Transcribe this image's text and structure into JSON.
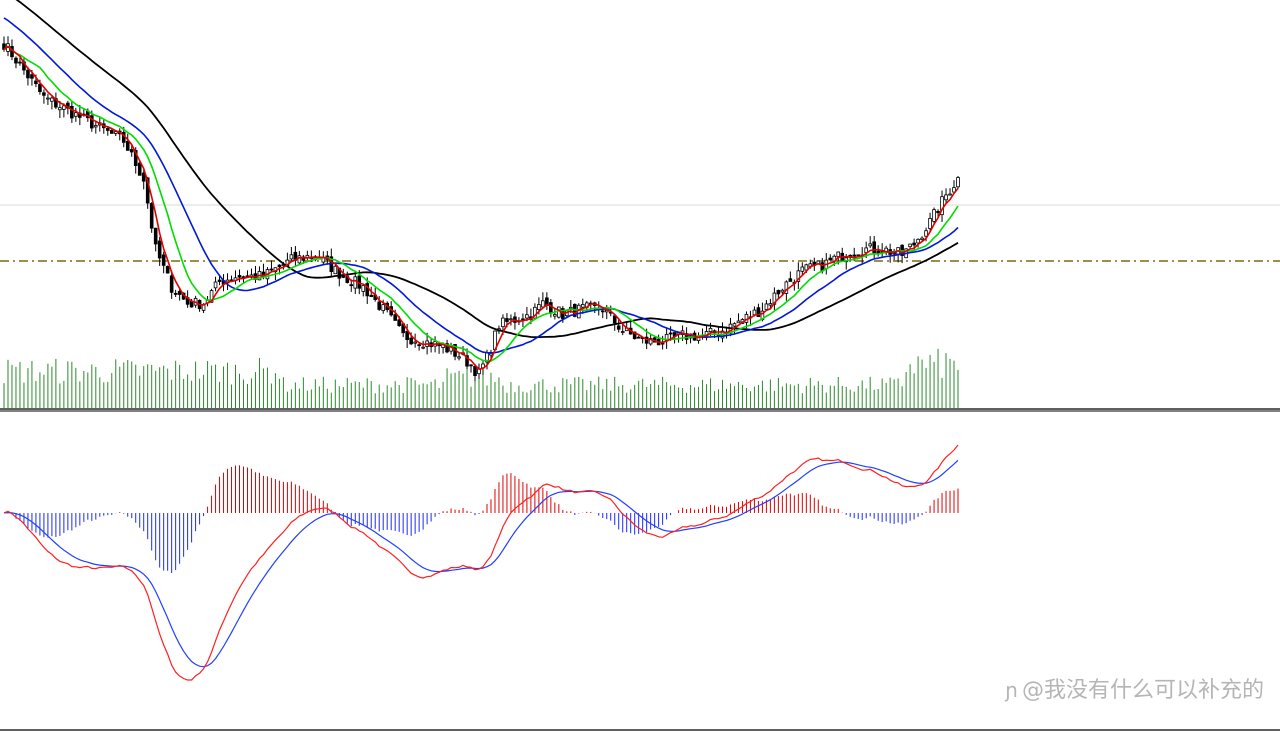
{
  "watermark": {
    "text": "@我没有什么可以补充的",
    "logo_icon": "zhihu-logo-icon"
  },
  "colors": {
    "ma_fast": "#e00000",
    "ma_mid": "#00dd00",
    "ma_slow": "#0018d8",
    "ma_long": "#000000",
    "candle": "#000000",
    "volume": "#2a8a2a",
    "dash_level": "#7a6a10",
    "hist_pos": "#e00000",
    "hist_neg": "#1a2aff",
    "macd_line": "#ff2020",
    "signal_line": "#2040ff",
    "grid": "#d8d8d8"
  },
  "chart_data": [
    {
      "type": "candlestick",
      "panel": "price",
      "title": "",
      "count": 240,
      "overlays": [
        "ma_fast",
        "ma_mid",
        "ma_slow",
        "ma_long"
      ],
      "volume": true,
      "close_keypoints": [
        [
          0,
          100
        ],
        [
          10,
          90
        ],
        [
          20,
          86
        ],
        [
          30,
          82
        ],
        [
          35,
          75
        ],
        [
          38,
          62
        ],
        [
          42,
          55
        ],
        [
          46,
          52
        ],
        [
          50,
          52
        ],
        [
          54,
          56
        ],
        [
          58,
          57
        ],
        [
          65,
          57
        ],
        [
          72,
          60
        ],
        [
          78,
          61
        ],
        [
          85,
          57
        ],
        [
          90,
          55
        ],
        [
          96,
          50
        ],
        [
          100,
          46
        ],
        [
          105,
          45
        ],
        [
          110,
          44
        ],
        [
          115,
          42
        ],
        [
          119,
          39
        ],
        [
          121,
          42
        ],
        [
          124,
          48
        ],
        [
          128,
          49
        ],
        [
          132,
          50
        ],
        [
          135,
          52
        ],
        [
          140,
          50
        ],
        [
          145,
          51
        ],
        [
          150,
          51
        ],
        [
          155,
          47
        ],
        [
          160,
          45
        ],
        [
          165,
          45
        ],
        [
          170,
          46
        ],
        [
          175,
          46
        ],
        [
          180,
          47
        ],
        [
          185,
          49
        ],
        [
          190,
          51
        ],
        [
          195,
          55
        ],
        [
          200,
          58
        ],
        [
          205,
          59
        ],
        [
          210,
          61
        ],
        [
          215,
          62
        ],
        [
          220,
          62
        ],
        [
          225,
          61
        ],
        [
          228,
          63
        ],
        [
          232,
          67
        ],
        [
          236,
          72
        ],
        [
          239,
          75
        ]
      ]
    },
    {
      "type": "macd",
      "panel": "indicator",
      "title": "",
      "series": [
        "macd",
        "signal",
        "histogram"
      ]
    }
  ]
}
